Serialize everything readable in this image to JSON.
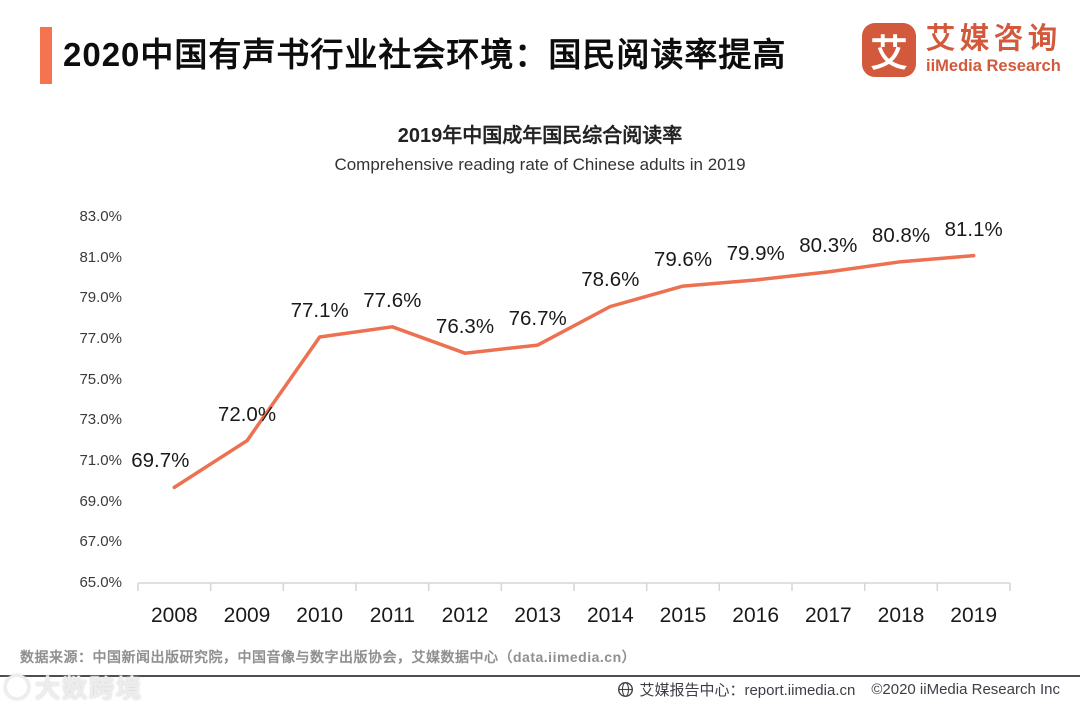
{
  "header": {
    "title": "2020中国有声书行业社会环境：国民阅读率提高"
  },
  "logo": {
    "mark": "艾",
    "name_cn": "艾媒咨询",
    "name_en": "iiMedia Research"
  },
  "colors": {
    "accent": "#F3744E",
    "line": "#ED7051",
    "logo": "#D2593C",
    "axis": "#D4D6DA"
  },
  "chart_data": {
    "type": "line",
    "title": "2019年中国成年国民综合阅读率",
    "subtitle": "Comprehensive reading rate of Chinese adults in 2019",
    "categories": [
      "2008",
      "2009",
      "2010",
      "2011",
      "2012",
      "2013",
      "2014",
      "2015",
      "2016",
      "2017",
      "2018",
      "2019"
    ],
    "values": [
      69.7,
      72.0,
      77.1,
      77.6,
      76.3,
      76.7,
      78.6,
      79.6,
      79.9,
      80.3,
      80.8,
      81.1
    ],
    "data_labels": [
      "69.7%",
      "72.0%",
      "77.1%",
      "77.6%",
      "76.3%",
      "76.7%",
      "78.6%",
      "79.6%",
      "79.9%",
      "80.3%",
      "80.8%",
      "81.1%"
    ],
    "unit": "%",
    "xlabel": "",
    "ylabel": "",
    "ylim": [
      65.0,
      83.0
    ],
    "ytick_step": 2.0,
    "ytick_values": [
      83.0,
      81.0,
      79.0,
      77.0,
      75.0,
      73.0,
      71.0,
      69.0,
      67.0,
      65.0
    ],
    "ytick_labels": [
      "83.0%",
      "81.0%",
      "79.0%",
      "77.0%",
      "75.0%",
      "73.0%",
      "71.0%",
      "69.0%",
      "67.0%",
      "65.0%"
    ],
    "grid": false,
    "legend": "none",
    "line_color": "#ED7051"
  },
  "source": {
    "text": "数据来源：中国新闻出版研究院，中国音像与数字出版协会，艾媒数据中心（data.iimedia.cn）"
  },
  "footer": {
    "report_center": "艾媒报告中心：report.iimedia.cn",
    "copyright": "©2020  iiMedia Research  Inc"
  },
  "watermark": {
    "text": "大数跨境"
  }
}
